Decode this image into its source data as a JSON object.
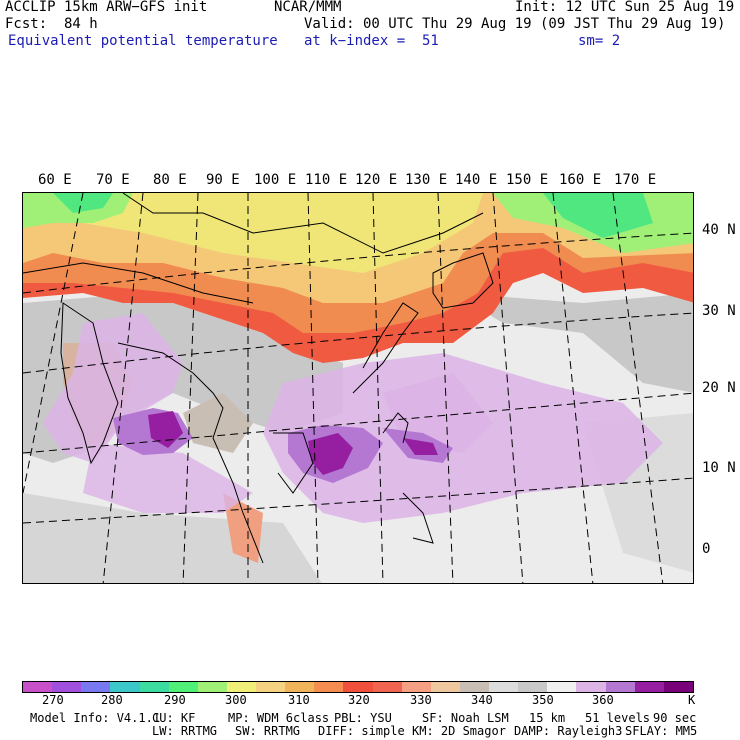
{
  "header": {
    "model": "ACCLIP 15km ARW−GFS init",
    "center": "NCAR/MMM",
    "init": "Init: 12 UTC Sun 25 Aug 19",
    "fcst_label": "Fcst:",
    "fcst_value": "84 h",
    "valid": "Valid: 00 UTC Thu 29 Aug 19 (09 JST Thu 29 Aug 19)",
    "field": "Equivalent potential temperature",
    "level": "at k−index =  51",
    "smooth": "sm= 2"
  },
  "map": {
    "lon_labels": [
      "60 E",
      "70 E",
      "80 E",
      "90 E",
      "100 E",
      "110 E",
      "120 E",
      "130 E",
      "140 E",
      "150 E",
      "160 E",
      "170 E"
    ],
    "lat_labels": [
      "40 N",
      "30 N",
      "20 N",
      "10 N",
      "0"
    ]
  },
  "colorbar": {
    "colors": [
      "#c850c8",
      "#a050dc",
      "#7878f0",
      "#3cc8c8",
      "#3cdca0",
      "#50f078",
      "#a0f078",
      "#f0f078",
      "#f5d282",
      "#f0b45a",
      "#f58c50",
      "#f0503c",
      "#f06450",
      "#f5a082",
      "#f0c8a0",
      "#c8beb4",
      "#dcdcdc",
      "#c8c8c8",
      "#f0f0f0",
      "#dcb4e6",
      "#b478d2",
      "#961ea0",
      "#780078"
    ],
    "labels": [
      "270",
      "280",
      "290",
      "300",
      "310",
      "320",
      "330",
      "340",
      "350",
      "360",
      "K"
    ]
  },
  "footer": {
    "line1": [
      "Model Info: V4.1.1",
      "CU: KF",
      "MP: WDM 6class",
      "PBL: YSU",
      "SF: Noah LSM",
      "15 km",
      "51 levels",
      "90 sec"
    ],
    "line2": [
      "LW: RRTMG",
      "SW: RRTMG",
      "DIFF: simple",
      "KM: 2D Smagor",
      "DAMP: Rayleigh3",
      "SFLAY: MM5"
    ]
  }
}
